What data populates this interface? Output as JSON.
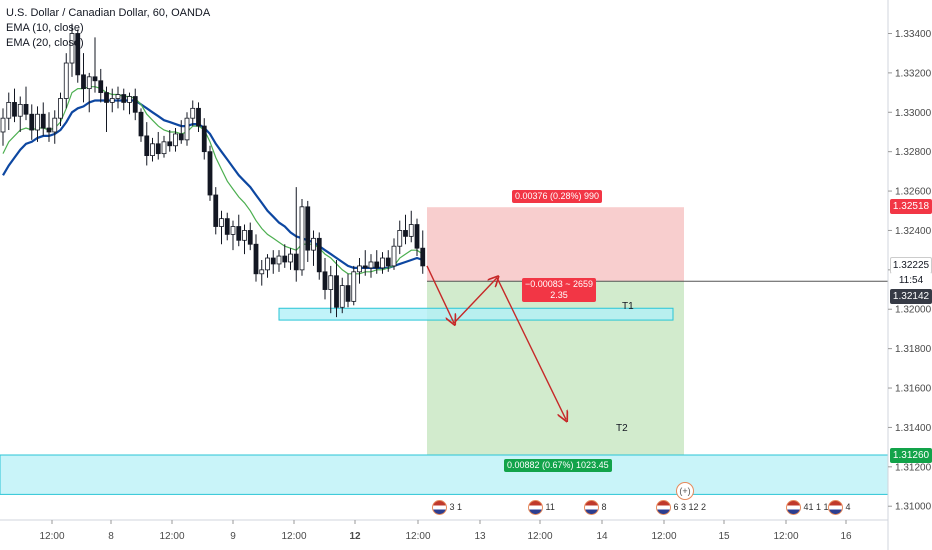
{
  "legend": {
    "symbol": "U.S. Dollar / Canadian Dollar, 60, OANDA",
    "ema10": "EMA (10, close)",
    "ema20": "EMA (20, close)"
  },
  "badges": {
    "stop": "1.32518",
    "last": "1.32225",
    "timer": "11:54",
    "entry": "1.32142",
    "target": "1.31260"
  },
  "position": {
    "risk_label": "0.00376 (0.28%) 990",
    "ratio_line1": "−0.00083 ~ 2659",
    "ratio_line2": "2.35",
    "reward_label": "0.00882 (0.67%) 1023.45",
    "t1": "T1",
    "t2": "T2"
  },
  "events": [
    {
      "counts": "3 1"
    },
    {
      "counts": "11"
    },
    {
      "counts": "8"
    },
    {
      "counts": "6 3 12 2"
    },
    {
      "counts": "41 1 1 2"
    },
    {
      "counts": "4"
    }
  ],
  "colors": {
    "up": "#ffffff",
    "down": "#131722",
    "ema10": "#4caf50",
    "ema20": "#0d47a1",
    "risk_zone": "#f7c6c6",
    "reward_zone": "#cde9c8",
    "support_zone": "#b2f0f7",
    "arrow": "#c62828",
    "badge_red": "#f23645",
    "badge_green": "#12a34a",
    "badge_dark": "#363a45"
  },
  "chart_data": {
    "type": "candlestick",
    "title": "U.S. Dollar / Canadian Dollar, 60, OANDA",
    "x_ticks": [
      "12:00",
      "8",
      "12:00",
      "9",
      "12:00",
      "12",
      "12:00",
      "13",
      "12:00",
      "14",
      "12:00",
      "15",
      "12:00",
      "16"
    ],
    "y_ticks": [
      "1.33400",
      "1.33200",
      "1.33000",
      "1.32800",
      "1.32600",
      "1.32400",
      "1.32200",
      "1.32000",
      "1.31800",
      "1.31600",
      "1.31400",
      "1.31200",
      "1.31000"
    ],
    "ylim": [
      1.3093,
      1.3357
    ],
    "grid": false,
    "candles": [
      {
        "o": 1.329,
        "h": 1.3302,
        "l": 1.3283,
        "c": 1.3297
      },
      {
        "o": 1.3297,
        "h": 1.331,
        "l": 1.3291,
        "c": 1.3305
      },
      {
        "o": 1.3305,
        "h": 1.3312,
        "l": 1.3295,
        "c": 1.3298
      },
      {
        "o": 1.3298,
        "h": 1.3308,
        "l": 1.329,
        "c": 1.3304
      },
      {
        "o": 1.3304,
        "h": 1.3313,
        "l": 1.3296,
        "c": 1.3299
      },
      {
        "o": 1.3299,
        "h": 1.3304,
        "l": 1.3286,
        "c": 1.3291
      },
      {
        "o": 1.3291,
        "h": 1.3303,
        "l": 1.3285,
        "c": 1.3299
      },
      {
        "o": 1.3299,
        "h": 1.3305,
        "l": 1.3288,
        "c": 1.3292
      },
      {
        "o": 1.3292,
        "h": 1.33,
        "l": 1.3285,
        "c": 1.329
      },
      {
        "o": 1.329,
        "h": 1.3301,
        "l": 1.3284,
        "c": 1.3297
      },
      {
        "o": 1.3297,
        "h": 1.331,
        "l": 1.3293,
        "c": 1.3307
      },
      {
        "o": 1.3307,
        "h": 1.333,
        "l": 1.3302,
        "c": 1.3325
      },
      {
        "o": 1.3325,
        "h": 1.3345,
        "l": 1.3318,
        "c": 1.334
      },
      {
        "o": 1.334,
        "h": 1.3342,
        "l": 1.3315,
        "c": 1.3319
      },
      {
        "o": 1.3319,
        "h": 1.333,
        "l": 1.3305,
        "c": 1.3312
      },
      {
        "o": 1.3312,
        "h": 1.332,
        "l": 1.33,
        "c": 1.3318
      },
      {
        "o": 1.3318,
        "h": 1.3338,
        "l": 1.331,
        "c": 1.3316
      },
      {
        "o": 1.3316,
        "h": 1.3322,
        "l": 1.3305,
        "c": 1.331
      },
      {
        "o": 1.331,
        "h": 1.3313,
        "l": 1.329,
        "c": 1.3305
      },
      {
        "o": 1.3305,
        "h": 1.3312,
        "l": 1.33,
        "c": 1.3307
      },
      {
        "o": 1.3307,
        "h": 1.3313,
        "l": 1.3302,
        "c": 1.3309
      },
      {
        "o": 1.3309,
        "h": 1.3312,
        "l": 1.3301,
        "c": 1.3305
      },
      {
        "o": 1.3305,
        "h": 1.331,
        "l": 1.3299,
        "c": 1.3308
      },
      {
        "o": 1.3308,
        "h": 1.3312,
        "l": 1.3296,
        "c": 1.33
      },
      {
        "o": 1.33,
        "h": 1.3302,
        "l": 1.3285,
        "c": 1.3288
      },
      {
        "o": 1.3288,
        "h": 1.3295,
        "l": 1.3273,
        "c": 1.3278
      },
      {
        "o": 1.3278,
        "h": 1.3287,
        "l": 1.3275,
        "c": 1.3284
      },
      {
        "o": 1.3284,
        "h": 1.329,
        "l": 1.3276,
        "c": 1.3279
      },
      {
        "o": 1.3279,
        "h": 1.3288,
        "l": 1.3277,
        "c": 1.3285
      },
      {
        "o": 1.3285,
        "h": 1.3291,
        "l": 1.328,
        "c": 1.3283
      },
      {
        "o": 1.3283,
        "h": 1.3292,
        "l": 1.328,
        "c": 1.3289
      },
      {
        "o": 1.3289,
        "h": 1.3296,
        "l": 1.3284,
        "c": 1.3286
      },
      {
        "o": 1.3286,
        "h": 1.33,
        "l": 1.3283,
        "c": 1.3297
      },
      {
        "o": 1.3297,
        "h": 1.3306,
        "l": 1.3293,
        "c": 1.3302
      },
      {
        "o": 1.3302,
        "h": 1.3305,
        "l": 1.329,
        "c": 1.3293
      },
      {
        "o": 1.3293,
        "h": 1.3297,
        "l": 1.3276,
        "c": 1.328
      },
      {
        "o": 1.328,
        "h": 1.3283,
        "l": 1.3255,
        "c": 1.3258
      },
      {
        "o": 1.3258,
        "h": 1.3262,
        "l": 1.3238,
        "c": 1.3242
      },
      {
        "o": 1.3242,
        "h": 1.325,
        "l": 1.3233,
        "c": 1.3246
      },
      {
        "o": 1.3246,
        "h": 1.3249,
        "l": 1.3235,
        "c": 1.3238
      },
      {
        "o": 1.3238,
        "h": 1.3245,
        "l": 1.323,
        "c": 1.3242
      },
      {
        "o": 1.3242,
        "h": 1.3248,
        "l": 1.3232,
        "c": 1.3235
      },
      {
        "o": 1.3235,
        "h": 1.3243,
        "l": 1.3228,
        "c": 1.324
      },
      {
        "o": 1.324,
        "h": 1.3244,
        "l": 1.323,
        "c": 1.3233
      },
      {
        "o": 1.3233,
        "h": 1.3238,
        "l": 1.3214,
        "c": 1.3218
      },
      {
        "o": 1.3218,
        "h": 1.3225,
        "l": 1.3212,
        "c": 1.322
      },
      {
        "o": 1.322,
        "h": 1.3228,
        "l": 1.3216,
        "c": 1.3226
      },
      {
        "o": 1.3226,
        "h": 1.323,
        "l": 1.3218,
        "c": 1.3223
      },
      {
        "o": 1.3223,
        "h": 1.323,
        "l": 1.3219,
        "c": 1.3227
      },
      {
        "o": 1.3227,
        "h": 1.3233,
        "l": 1.3221,
        "c": 1.3224
      },
      {
        "o": 1.3224,
        "h": 1.3231,
        "l": 1.322,
        "c": 1.3228
      },
      {
        "o": 1.3228,
        "h": 1.3262,
        "l": 1.3214,
        "c": 1.322
      },
      {
        "o": 1.322,
        "h": 1.3256,
        "l": 1.3217,
        "c": 1.3252
      },
      {
        "o": 1.3252,
        "h": 1.3255,
        "l": 1.3224,
        "c": 1.323
      },
      {
        "o": 1.323,
        "h": 1.324,
        "l": 1.3222,
        "c": 1.3236
      },
      {
        "o": 1.3236,
        "h": 1.3239,
        "l": 1.3215,
        "c": 1.3219
      },
      {
        "o": 1.3219,
        "h": 1.3226,
        "l": 1.3205,
        "c": 1.321
      },
      {
        "o": 1.321,
        "h": 1.3222,
        "l": 1.3198,
        "c": 1.3217
      },
      {
        "o": 1.3217,
        "h": 1.3225,
        "l": 1.3196,
        "c": 1.3201
      },
      {
        "o": 1.3201,
        "h": 1.3216,
        "l": 1.3198,
        "c": 1.3212
      },
      {
        "o": 1.3212,
        "h": 1.3218,
        "l": 1.3201,
        "c": 1.3204
      },
      {
        "o": 1.3204,
        "h": 1.3222,
        "l": 1.3202,
        "c": 1.3219
      },
      {
        "o": 1.3219,
        "h": 1.3226,
        "l": 1.3213,
        "c": 1.3222
      },
      {
        "o": 1.3222,
        "h": 1.323,
        "l": 1.3217,
        "c": 1.3221
      },
      {
        "o": 1.3221,
        "h": 1.3228,
        "l": 1.3216,
        "c": 1.3224
      },
      {
        "o": 1.3224,
        "h": 1.323,
        "l": 1.3218,
        "c": 1.3221
      },
      {
        "o": 1.3221,
        "h": 1.3229,
        "l": 1.3218,
        "c": 1.3226
      },
      {
        "o": 1.3226,
        "h": 1.323,
        "l": 1.3219,
        "c": 1.3222
      },
      {
        "o": 1.3222,
        "h": 1.3236,
        "l": 1.322,
        "c": 1.3232
      },
      {
        "o": 1.3232,
        "h": 1.3245,
        "l": 1.3228,
        "c": 1.324
      },
      {
        "o": 1.324,
        "h": 1.3248,
        "l": 1.3233,
        "c": 1.3237
      },
      {
        "o": 1.3237,
        "h": 1.325,
        "l": 1.3234,
        "c": 1.3243
      },
      {
        "o": 1.3243,
        "h": 1.3246,
        "l": 1.3227,
        "c": 1.3231
      },
      {
        "o": 1.3231,
        "h": 1.324,
        "l": 1.3218,
        "c": 1.3222
      }
    ],
    "ema10": [
      1.3279,
      1.3285,
      1.3288,
      1.3291,
      1.3292,
      1.3291,
      1.3292,
      1.3292,
      1.3291,
      1.3292,
      1.3295,
      1.3302,
      1.331,
      1.3312,
      1.3312,
      1.3313,
      1.3313,
      1.3312,
      1.331,
      1.3309,
      1.3309,
      1.3308,
      1.3308,
      1.3307,
      1.3304,
      1.3299,
      1.3296,
      1.3293,
      1.3291,
      1.329,
      1.329,
      1.3289,
      1.329,
      1.3293,
      1.3293,
      1.3291,
      1.3285,
      1.3277,
      1.3271,
      1.3265,
      1.3261,
      1.3257,
      1.3254,
      1.325,
      1.3245,
      1.3241,
      1.3238,
      1.3236,
      1.3234,
      1.3232,
      1.3231,
      1.323,
      1.3233,
      1.3233,
      1.3233,
      1.3231,
      1.3228,
      1.3226,
      1.3223,
      1.322,
      1.3218,
      1.3218,
      1.3218,
      1.3219,
      1.3219,
      1.322,
      1.322,
      1.3221,
      1.3222,
      1.3226,
      1.3228,
      1.323,
      1.323,
      1.3228
    ],
    "ema20": [
      1.3268,
      1.3273,
      1.3277,
      1.3281,
      1.3284,
      1.3285,
      1.3287,
      1.3288,
      1.3288,
      1.3289,
      1.3291,
      1.3295,
      1.33,
      1.3302,
      1.3303,
      1.3305,
      1.3306,
      1.3306,
      1.3306,
      1.3306,
      1.3306,
      1.3306,
      1.3306,
      1.3306,
      1.3304,
      1.3302,
      1.33,
      1.3298,
      1.3296,
      1.3295,
      1.3294,
      1.3293,
      1.3293,
      1.3294,
      1.3294,
      1.3292,
      1.3289,
      1.3284,
      1.328,
      1.3276,
      1.3272,
      1.3268,
      1.3265,
      1.3262,
      1.3258,
      1.3254,
      1.325,
      1.3247,
      1.3244,
      1.3242,
      1.3239,
      1.3237,
      1.3236,
      1.3235,
      1.3234,
      1.3232,
      1.323,
      1.3228,
      1.3226,
      1.3224,
      1.3222,
      1.3221,
      1.3221,
      1.3221,
      1.3221,
      1.3221,
      1.3221,
      1.3221,
      1.3222,
      1.3223,
      1.3224,
      1.3225,
      1.3226,
      1.3225
    ],
    "risk_zone": {
      "top": 1.32518,
      "bottom": 1.32142
    },
    "reward_zone": {
      "top": 1.32142,
      "bottom": 1.3126
    },
    "support_zone_small": {
      "top": 1.32005,
      "bottom": 1.31945
    },
    "support_zone_large": {
      "top": 1.3126,
      "bottom": 1.3106
    },
    "projection": [
      1.3222,
      1.3193,
      1.3216,
      1.3144
    ]
  }
}
